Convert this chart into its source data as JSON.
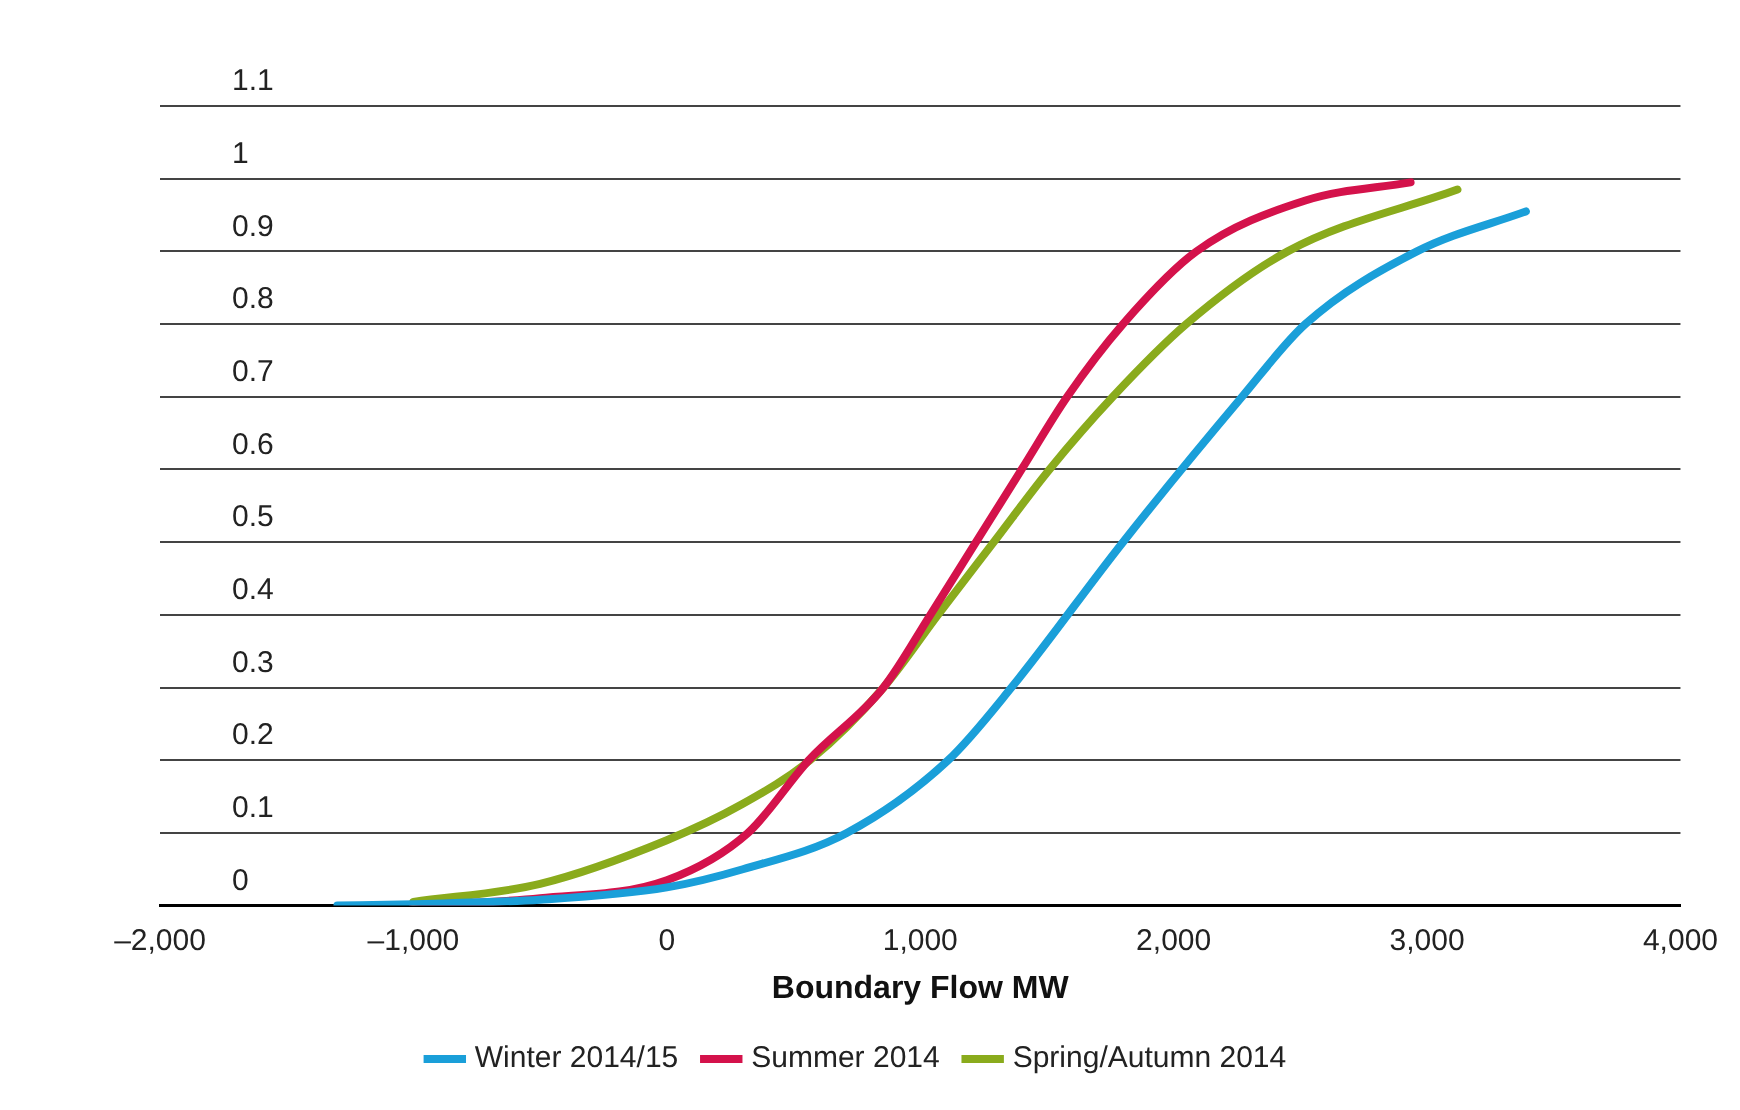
{
  "chart_data": {
    "type": "line",
    "xlabel": "Boundary Flow MW",
    "xlim": [
      -2000,
      4000
    ],
    "xticks": [
      {
        "value": -2000,
        "label": "–2,000"
      },
      {
        "value": -1000,
        "label": "–1,000"
      },
      0,
      {
        "value": 1000,
        "label": "1,000"
      },
      {
        "value": 2000,
        "label": "2,000"
      },
      {
        "value": 3000,
        "label": "3,000"
      },
      {
        "value": 4000,
        "label": "4,000"
      }
    ],
    "ylim": [
      0,
      1.1
    ],
    "yticks": [
      0,
      0.1,
      0.2,
      0.3,
      0.4,
      0.5,
      0.6,
      0.7,
      0.8,
      0.9,
      1,
      1.1
    ],
    "grid": "y",
    "legend": "bottom",
    "marker": "none",
    "line_style": "solid",
    "series": [
      {
        "name": "Winter 2014/15",
        "color": "#1a9fd9",
        "x": [
          -1300,
          -1000,
          -500,
          0,
          300,
          710,
          1110,
          1360,
          1800,
          2270,
          2520,
          2960,
          3390
        ],
        "values": [
          0,
          0.002,
          0.008,
          0.025,
          0.05,
          0.1,
          0.2,
          0.3,
          0.5,
          0.7,
          0.8,
          0.9,
          0.955
        ]
      },
      {
        "name": "Summer 2014",
        "color": "#d4124b",
        "x": [
          -1000,
          -500,
          0,
          320,
          560,
          855,
          1040,
          1220,
          1400,
          1580,
          1800,
          2090,
          2520,
          2935
        ],
        "values": [
          0,
          0.01,
          0.035,
          0.1,
          0.2,
          0.3,
          0.4,
          0.5,
          0.6,
          0.7,
          0.8,
          0.9,
          0.97,
          0.995
        ]
      },
      {
        "name": "Spring/Autumn 2014",
        "color": "#8aab1c",
        "x": [
          -1000,
          -500,
          0,
          300,
          565,
          855,
          1070,
          1290,
          1510,
          1760,
          2050,
          2450,
          3120
        ],
        "values": [
          0.005,
          0.03,
          0.09,
          0.14,
          0.2,
          0.3,
          0.4,
          0.5,
          0.6,
          0.7,
          0.8,
          0.9,
          0.985
        ]
      }
    ]
  }
}
